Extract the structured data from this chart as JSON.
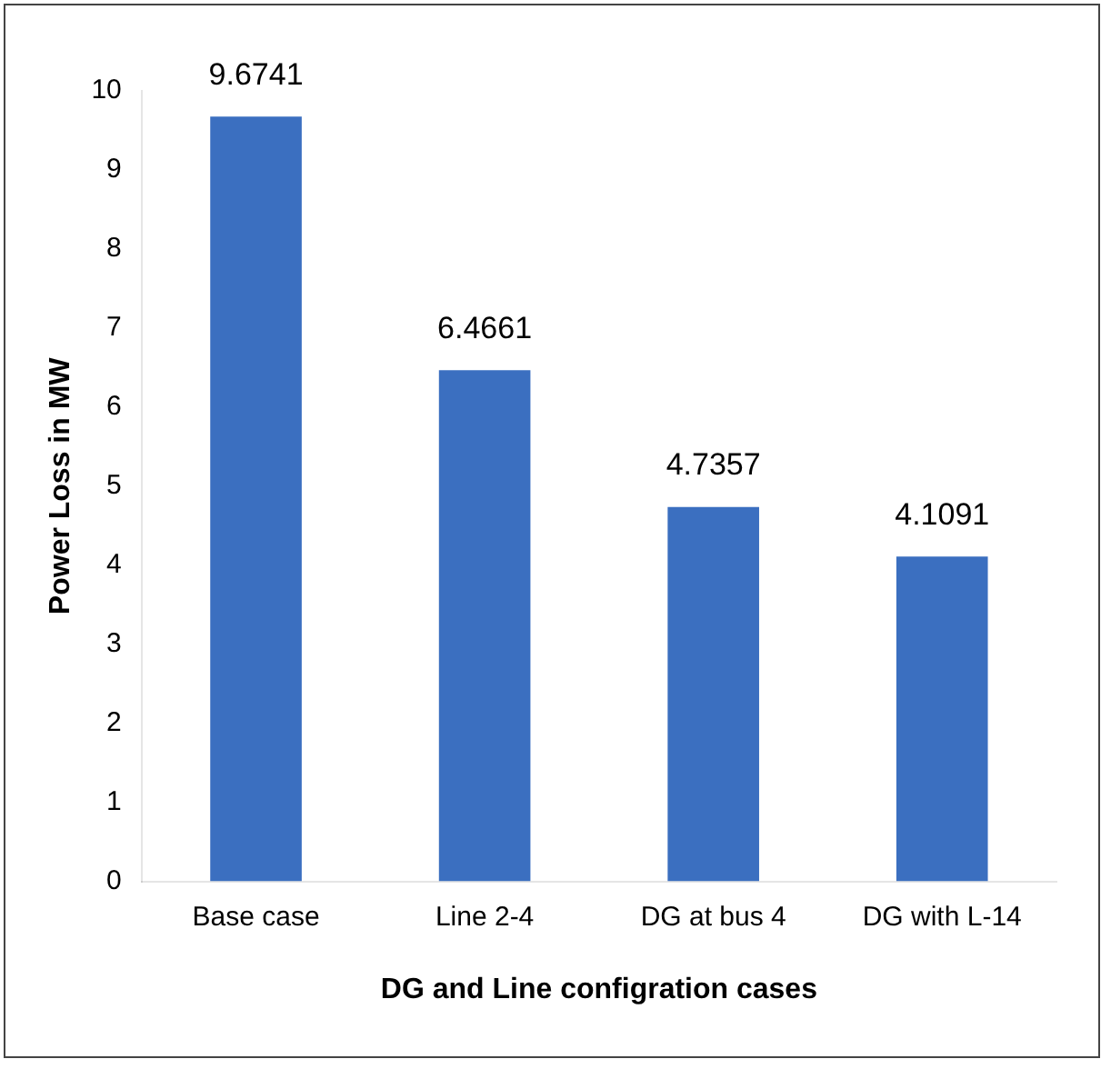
{
  "chart_data": {
    "type": "bar",
    "xlabel": "DG and Line configration cases",
    "ylabel": "Power Loss in MW",
    "categories": [
      "Base case",
      "Line 2-4",
      "DG at bus 4",
      "DG with L-14"
    ],
    "values": [
      9.6741,
      6.4661,
      4.7357,
      4.1091
    ],
    "color": "#3b6fc0",
    "ylim": [
      0,
      10
    ],
    "yticks": [
      0,
      1,
      2,
      3,
      4,
      5,
      6,
      7,
      8,
      9,
      10
    ],
    "grid": false,
    "legend": false,
    "data_labels": true
  }
}
